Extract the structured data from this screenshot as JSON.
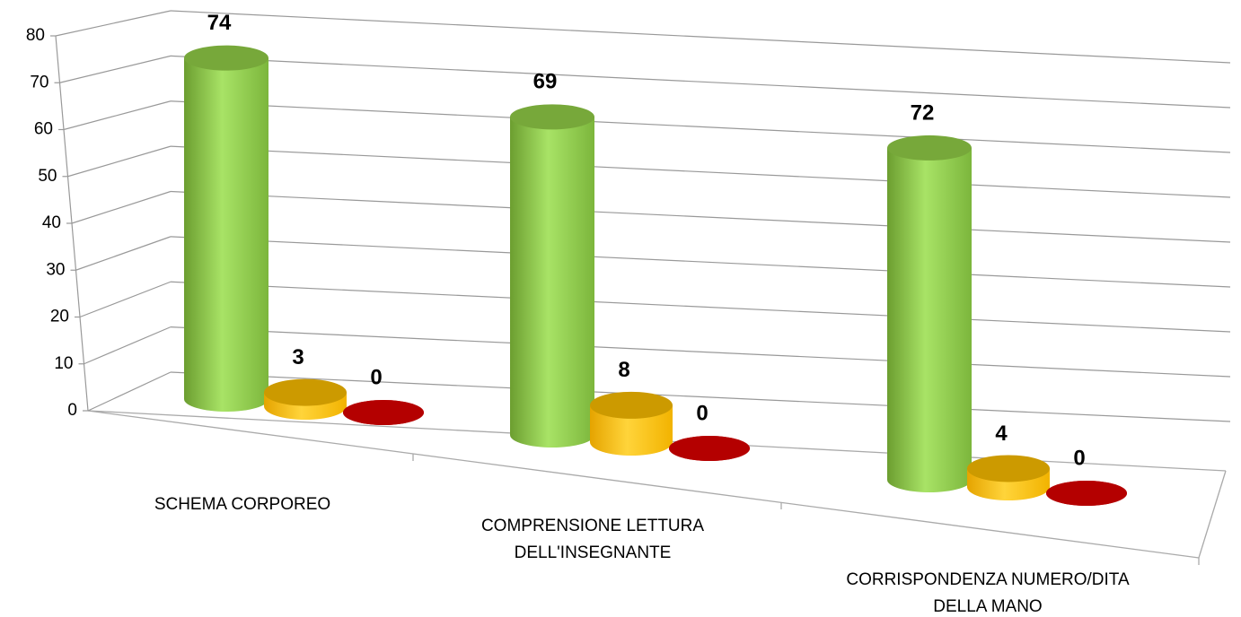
{
  "chart_data": {
    "type": "bar",
    "categories": [
      "SCHEMA CORPOREO",
      "COMPRENSIONE LETTURA\nDELL'INSEGNANTE",
      "CORRISPONDENZA NUMERO/DITA\nDELLA MANO"
    ],
    "series": [
      {
        "color": "#92d050",
        "values": [
          74,
          69,
          72
        ]
      },
      {
        "color": "#ffc000",
        "values": [
          3,
          8,
          4
        ]
      },
      {
        "color": "#c00000",
        "values": [
          0,
          0,
          0
        ]
      }
    ],
    "ylim": [
      0,
      80
    ],
    "yticks": [
      0,
      10,
      20,
      30,
      40,
      50,
      60,
      70,
      80
    ],
    "grid": true
  }
}
